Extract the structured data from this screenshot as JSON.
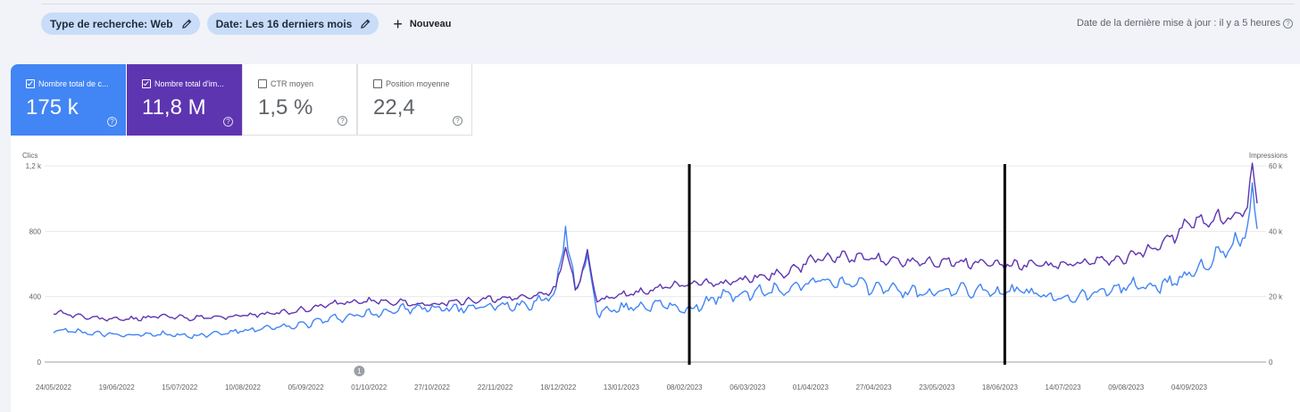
{
  "toolbar": {
    "chips": [
      {
        "label": "Type de recherche: Web"
      },
      {
        "label": "Date: Les 16 derniers mois"
      }
    ],
    "new_label": "Nouveau",
    "updated_text": "Date de la dernière mise à jour : il y a 5 heures"
  },
  "metrics": [
    {
      "label": "Nombre total de c...",
      "value": "175 k",
      "checked": true,
      "color": "#4285f4"
    },
    {
      "label": "Nombre total d'im...",
      "value": "11,8 M",
      "checked": true,
      "color": "#5e35b1"
    },
    {
      "label": "CTR moyen",
      "value": "1,5 %",
      "checked": false
    },
    {
      "label": "Position moyenne",
      "value": "22,4",
      "checked": false
    }
  ],
  "chart_data": {
    "type": "line",
    "ylabel_left": "Clics",
    "ylabel_right": "Impressions",
    "yticks_left": [
      "0",
      "400",
      "800",
      "1,2 k"
    ],
    "yticks_right": [
      "0",
      "20 k",
      "40 k",
      "60 k"
    ],
    "ylim_left": [
      0,
      1200
    ],
    "ylim_right": [
      0,
      60000
    ],
    "x_tick_labels": [
      "24/05/2022",
      "19/06/2022",
      "15/07/2022",
      "10/08/2022",
      "05/09/2022",
      "01/10/2022",
      "27/10/2022",
      "22/11/2022",
      "18/12/2022",
      "13/01/2023",
      "08/02/2023",
      "06/03/2023",
      "01/04/2023",
      "27/04/2023",
      "23/05/2023",
      "18/06/2023",
      "14/07/2023",
      "09/08/2023",
      "04/09/2023"
    ],
    "grid": true,
    "annotation_marker": "1",
    "annotation_date": "27/09/2022",
    "vertical_markers": [
      "10/02/2023",
      "20/06/2023"
    ],
    "series_colors": {
      "clicks": "#4285f4",
      "impressions": "#5e35b1"
    },
    "series": [
      {
        "axis": "left",
        "points": [
          [
            "24/05/2022",
            200
          ],
          [
            "08/06/2022",
            175
          ],
          [
            "22/06/2022",
            165
          ],
          [
            "06/07/2022",
            175
          ],
          [
            "20/07/2022",
            160
          ],
          [
            "03/08/2022",
            180
          ],
          [
            "17/08/2022",
            200
          ],
          [
            "31/08/2022",
            220
          ],
          [
            "14/09/2022",
            260
          ],
          [
            "28/09/2022",
            290
          ],
          [
            "12/10/2022",
            320
          ],
          [
            "26/10/2022",
            330
          ],
          [
            "09/11/2022",
            330
          ],
          [
            "23/11/2022",
            340
          ],
          [
            "07/12/2022",
            360
          ],
          [
            "17/12/2022",
            420
          ],
          [
            "21/12/2022",
            820
          ],
          [
            "25/12/2022",
            430
          ],
          [
            "30/12/2022",
            650
          ],
          [
            "03/01/2023",
            300
          ],
          [
            "17/01/2023",
            340
          ],
          [
            "31/01/2023",
            350
          ],
          [
            "10/02/2023",
            320
          ],
          [
            "22/02/2023",
            400
          ],
          [
            "08/03/2023",
            420
          ],
          [
            "22/03/2023",
            450
          ],
          [
            "05/04/2023",
            500
          ],
          [
            "19/04/2023",
            470
          ],
          [
            "03/05/2023",
            450
          ],
          [
            "17/05/2023",
            420
          ],
          [
            "31/05/2023",
            440
          ],
          [
            "14/06/2023",
            430
          ],
          [
            "28/06/2023",
            430
          ],
          [
            "12/07/2023",
            390
          ],
          [
            "26/07/2023",
            420
          ],
          [
            "09/08/2023",
            470
          ],
          [
            "23/08/2023",
            460
          ],
          [
            "06/09/2023",
            560
          ],
          [
            "20/09/2023",
            680
          ],
          [
            "28/09/2023",
            800
          ],
          [
            "30/09/2023",
            990
          ],
          [
            "02/10/2023",
            800
          ]
        ]
      },
      {
        "axis": "right",
        "points": [
          [
            "24/05/2022",
            15500
          ],
          [
            "08/06/2022",
            13500
          ],
          [
            "22/06/2022",
            13000
          ],
          [
            "06/07/2022",
            14000
          ],
          [
            "20/07/2022",
            13500
          ],
          [
            "03/08/2022",
            13800
          ],
          [
            "17/08/2022",
            14500
          ],
          [
            "31/08/2022",
            15500
          ],
          [
            "14/09/2022",
            17500
          ],
          [
            "28/09/2022",
            18500
          ],
          [
            "12/10/2022",
            18500
          ],
          [
            "26/10/2022",
            17500
          ],
          [
            "09/11/2022",
            18500
          ],
          [
            "23/11/2022",
            19500
          ],
          [
            "07/12/2022",
            20000
          ],
          [
            "17/12/2022",
            22000
          ],
          [
            "21/12/2022",
            36000
          ],
          [
            "25/12/2022",
            22000
          ],
          [
            "30/12/2022",
            33000
          ],
          [
            "03/01/2023",
            18500
          ],
          [
            "17/01/2023",
            21000
          ],
          [
            "31/01/2023",
            23000
          ],
          [
            "10/02/2023",
            24000
          ],
          [
            "22/02/2023",
            24000
          ],
          [
            "08/03/2023",
            25500
          ],
          [
            "22/03/2023",
            27500
          ],
          [
            "05/04/2023",
            32000
          ],
          [
            "19/04/2023",
            32000
          ],
          [
            "03/05/2023",
            31000
          ],
          [
            "17/05/2023",
            31000
          ],
          [
            "31/05/2023",
            30500
          ],
          [
            "14/06/2023",
            30000
          ],
          [
            "28/06/2023",
            29500
          ],
          [
            "12/07/2023",
            29500
          ],
          [
            "26/07/2023",
            30500
          ],
          [
            "09/08/2023",
            31500
          ],
          [
            "23/08/2023",
            36000
          ],
          [
            "06/09/2023",
            43000
          ],
          [
            "20/09/2023",
            44000
          ],
          [
            "28/09/2023",
            47000
          ],
          [
            "30/09/2023",
            57000
          ],
          [
            "02/10/2023",
            50000
          ]
        ]
      }
    ]
  }
}
